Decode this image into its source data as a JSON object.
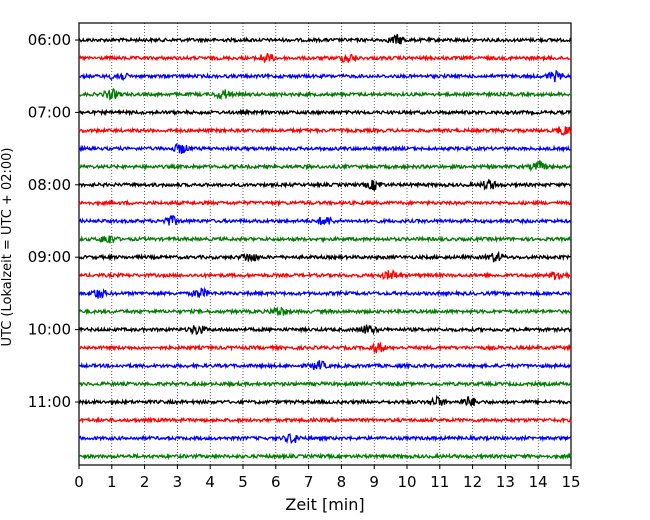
{
  "chart_data": {
    "type": "line",
    "chart_kind": "helicorder seismogram",
    "xlabel": "Zeit  [min]",
    "ylabel": "UTC (Lokalzeit = UTC + 02:00)",
    "xlim": [
      0,
      15
    ],
    "x_ticks": [
      "0",
      "1",
      "2",
      "3",
      "4",
      "5",
      "6",
      "7",
      "8",
      "9",
      "10",
      "11",
      "12",
      "13",
      "14",
      "15"
    ],
    "y_ticks": [
      "06:00",
      "07:00",
      "08:00",
      "09:00",
      "10:00",
      "11:00"
    ],
    "vertical_grid": "dotted, every minute",
    "trace_colors": [
      "#000000",
      "#ff0000",
      "#0000ff",
      "#008000"
    ],
    "trace_interval_min": 15,
    "traces": [
      {
        "start": "06:00",
        "color": "#000000",
        "events_min": [
          9.7
        ]
      },
      {
        "start": "06:15",
        "color": "#ff0000",
        "events_min": [
          5.7,
          8.2
        ]
      },
      {
        "start": "06:30",
        "color": "#0000ff",
        "events_min": [
          1.2,
          14.5
        ]
      },
      {
        "start": "06:45",
        "color": "#008000",
        "events_min": [
          1.0,
          4.4
        ]
      },
      {
        "start": "07:00",
        "color": "#000000",
        "events_min": []
      },
      {
        "start": "07:15",
        "color": "#ff0000",
        "events_min": [
          14.8
        ]
      },
      {
        "start": "07:30",
        "color": "#0000ff",
        "events_min": [
          3.1
        ]
      },
      {
        "start": "07:45",
        "color": "#008000",
        "events_min": [
          14.0
        ]
      },
      {
        "start": "08:00",
        "color": "#000000",
        "events_min": [
          9.0,
          12.5
        ]
      },
      {
        "start": "08:15",
        "color": "#ff0000",
        "events_min": []
      },
      {
        "start": "08:30",
        "color": "#0000ff",
        "events_min": [
          2.8,
          7.5
        ]
      },
      {
        "start": "08:45",
        "color": "#008000",
        "events_min": [
          0.9
        ]
      },
      {
        "start": "09:00",
        "color": "#000000",
        "events_min": [
          5.2,
          12.7
        ]
      },
      {
        "start": "09:15",
        "color": "#ff0000",
        "events_min": [
          9.5,
          14.6
        ]
      },
      {
        "start": "09:30",
        "color": "#0000ff",
        "events_min": [
          0.6,
          3.7
        ]
      },
      {
        "start": "09:45",
        "color": "#008000",
        "events_min": [
          6.1
        ]
      },
      {
        "start": "10:00",
        "color": "#000000",
        "events_min": [
          3.6,
          8.8
        ]
      },
      {
        "start": "10:15",
        "color": "#ff0000",
        "events_min": [
          9.1
        ]
      },
      {
        "start": "10:30",
        "color": "#0000ff",
        "events_min": [
          7.3
        ]
      },
      {
        "start": "10:45",
        "color": "#008000",
        "events_min": []
      },
      {
        "start": "11:00",
        "color": "#000000",
        "events_min": [
          10.9,
          11.9
        ]
      },
      {
        "start": "11:15",
        "color": "#ff0000",
        "events_min": []
      },
      {
        "start": "11:30",
        "color": "#0000ff",
        "events_min": [
          6.5
        ]
      },
      {
        "start": "11:45",
        "color": "#008000",
        "events_min": []
      }
    ]
  }
}
